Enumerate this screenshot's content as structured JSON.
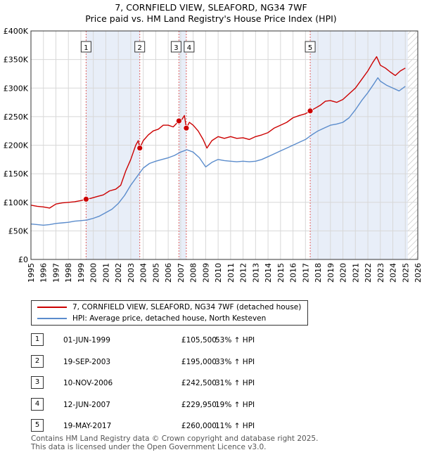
{
  "title_line1": "7, CORNFIELD VIEW, SLEAFORD, NG34 7WF",
  "title_line2": "Price paid vs. HM Land Registry's House Price Index (HPI)",
  "colors": {
    "property": "#cc0000",
    "hpi": "#5b8ccc",
    "shade": "#e8eef8",
    "hatch": "#bbbbbb",
    "vline": "#e06060",
    "grid": "#d8d8d8"
  },
  "legend": {
    "property_label": "7, CORNFIELD VIEW, SLEAFORD, NG34 7WF (detached house)",
    "hpi_label": "HPI: Average price, detached house, North Kesteven"
  },
  "transactions": [
    {
      "num": "1",
      "date": "01-JUN-1999",
      "price": "£105,500",
      "hpi": "53% ↑ HPI",
      "year": 1999.42,
      "value": 105500
    },
    {
      "num": "2",
      "date": "19-SEP-2003",
      "price": "£195,000",
      "hpi": "33% ↑ HPI",
      "year": 2003.72,
      "value": 195000
    },
    {
      "num": "3",
      "date": "10-NOV-2006",
      "price": "£242,500",
      "hpi": "31% ↑ HPI",
      "year": 2006.86,
      "value": 242500
    },
    {
      "num": "4",
      "date": "12-JUN-2007",
      "price": "£229,950",
      "hpi": "19% ↑ HPI",
      "year": 2007.45,
      "value": 229950
    },
    {
      "num": "5",
      "date": "19-MAY-2017",
      "price": "£260,000",
      "hpi": "11% ↑ HPI",
      "year": 2017.38,
      "value": 260000
    }
  ],
  "footer": {
    "line1": "Contains HM Land Registry data © Crown copyright and database right 2025.",
    "line2": "This data is licensed under the Open Government Licence v3.0."
  },
  "chart_data": {
    "type": "line",
    "title": "7, CORNFIELD VIEW, SLEAFORD, NG34 7WF — Price paid vs. HM Land Registry's House Price Index (HPI)",
    "xlabel": "",
    "ylabel": "",
    "xlim": [
      1995,
      2026
    ],
    "ylim": [
      0,
      400000
    ],
    "x_ticks": [
      1995,
      1996,
      1997,
      1998,
      1999,
      2000,
      2001,
      2002,
      2003,
      2004,
      2005,
      2006,
      2007,
      2008,
      2009,
      2010,
      2011,
      2012,
      2013,
      2014,
      2015,
      2016,
      2017,
      2018,
      2019,
      2020,
      2021,
      2022,
      2023,
      2024,
      2025,
      2026
    ],
    "y_ticks": [
      0,
      50000,
      100000,
      150000,
      200000,
      250000,
      300000,
      350000,
      400000
    ],
    "y_tick_labels": [
      "£0",
      "£50K",
      "£100K",
      "£150K",
      "£200K",
      "£250K",
      "£300K",
      "£350K",
      "£400K"
    ],
    "grid": true,
    "shaded_ranges": [
      [
        1999.42,
        2003.72
      ],
      [
        2006.86,
        2007.45
      ],
      [
        2017.38,
        2025.2
      ]
    ],
    "hatched_range": [
      2025.2,
      2026
    ],
    "series": [
      {
        "name": "7, CORNFIELD VIEW, SLEAFORD, NG34 7WF (detached house)",
        "points": [
          [
            1995.0,
            95000
          ],
          [
            1995.5,
            93000
          ],
          [
            1996.0,
            92000
          ],
          [
            1996.5,
            90000
          ],
          [
            1997.0,
            97000
          ],
          [
            1997.5,
            99000
          ],
          [
            1998.0,
            100000
          ],
          [
            1998.5,
            101000
          ],
          [
            1999.0,
            103000
          ],
          [
            1999.42,
            105500
          ],
          [
            1999.8,
            107000
          ],
          [
            2000.3,
            110000
          ],
          [
            2000.8,
            113000
          ],
          [
            2001.3,
            120000
          ],
          [
            2001.8,
            123000
          ],
          [
            2002.2,
            130000
          ],
          [
            2002.6,
            155000
          ],
          [
            2003.0,
            175000
          ],
          [
            2003.4,
            200000
          ],
          [
            2003.6,
            208000
          ],
          [
            2003.72,
            195000
          ],
          [
            2004.0,
            208000
          ],
          [
            2004.4,
            218000
          ],
          [
            2004.8,
            225000
          ],
          [
            2005.2,
            228000
          ],
          [
            2005.6,
            235000
          ],
          [
            2006.0,
            235000
          ],
          [
            2006.4,
            232000
          ],
          [
            2006.86,
            242500
          ],
          [
            2007.1,
            245000
          ],
          [
            2007.3,
            252000
          ],
          [
            2007.45,
            229950
          ],
          [
            2007.7,
            240000
          ],
          [
            2008.0,
            235000
          ],
          [
            2008.4,
            225000
          ],
          [
            2008.8,
            210000
          ],
          [
            2009.1,
            195000
          ],
          [
            2009.5,
            208000
          ],
          [
            2010.0,
            215000
          ],
          [
            2010.5,
            212000
          ],
          [
            2011.0,
            215000
          ],
          [
            2011.5,
            212000
          ],
          [
            2012.0,
            213000
          ],
          [
            2012.5,
            210000
          ],
          [
            2013.0,
            215000
          ],
          [
            2013.5,
            218000
          ],
          [
            2014.0,
            222000
          ],
          [
            2014.5,
            230000
          ],
          [
            2015.0,
            235000
          ],
          [
            2015.5,
            240000
          ],
          [
            2016.0,
            248000
          ],
          [
            2016.5,
            252000
          ],
          [
            2017.0,
            255000
          ],
          [
            2017.38,
            260000
          ],
          [
            2017.8,
            265000
          ],
          [
            2018.2,
            270000
          ],
          [
            2018.6,
            277000
          ],
          [
            2019.0,
            278000
          ],
          [
            2019.5,
            275000
          ],
          [
            2020.0,
            280000
          ],
          [
            2020.5,
            290000
          ],
          [
            2021.0,
            300000
          ],
          [
            2021.5,
            315000
          ],
          [
            2022.0,
            330000
          ],
          [
            2022.4,
            345000
          ],
          [
            2022.7,
            355000
          ],
          [
            2023.0,
            340000
          ],
          [
            2023.4,
            335000
          ],
          [
            2023.8,
            328000
          ],
          [
            2024.2,
            322000
          ],
          [
            2024.6,
            330000
          ],
          [
            2025.0,
            335000
          ]
        ]
      },
      {
        "name": "HPI: Average price, detached house, North Kesteven",
        "points": [
          [
            1995.0,
            62000
          ],
          [
            1995.5,
            61000
          ],
          [
            1996.0,
            60000
          ],
          [
            1996.5,
            61000
          ],
          [
            1997.0,
            63000
          ],
          [
            1997.5,
            64000
          ],
          [
            1998.0,
            65000
          ],
          [
            1998.5,
            67000
          ],
          [
            1999.0,
            68000
          ],
          [
            1999.5,
            69000
          ],
          [
            2000.0,
            72000
          ],
          [
            2000.5,
            76000
          ],
          [
            2001.0,
            82000
          ],
          [
            2001.5,
            88000
          ],
          [
            2002.0,
            98000
          ],
          [
            2002.5,
            112000
          ],
          [
            2003.0,
            130000
          ],
          [
            2003.5,
            145000
          ],
          [
            2004.0,
            160000
          ],
          [
            2004.5,
            168000
          ],
          [
            2005.0,
            172000
          ],
          [
            2005.5,
            175000
          ],
          [
            2006.0,
            178000
          ],
          [
            2006.5,
            182000
          ],
          [
            2007.0,
            188000
          ],
          [
            2007.5,
            192000
          ],
          [
            2008.0,
            188000
          ],
          [
            2008.5,
            178000
          ],
          [
            2009.0,
            162000
          ],
          [
            2009.5,
            170000
          ],
          [
            2010.0,
            175000
          ],
          [
            2010.5,
            173000
          ],
          [
            2011.0,
            172000
          ],
          [
            2011.5,
            171000
          ],
          [
            2012.0,
            172000
          ],
          [
            2012.5,
            171000
          ],
          [
            2013.0,
            172000
          ],
          [
            2013.5,
            175000
          ],
          [
            2014.0,
            180000
          ],
          [
            2014.5,
            185000
          ],
          [
            2015.0,
            190000
          ],
          [
            2015.5,
            195000
          ],
          [
            2016.0,
            200000
          ],
          [
            2016.5,
            205000
          ],
          [
            2017.0,
            210000
          ],
          [
            2017.5,
            218000
          ],
          [
            2018.0,
            225000
          ],
          [
            2018.5,
            230000
          ],
          [
            2019.0,
            235000
          ],
          [
            2019.5,
            237000
          ],
          [
            2020.0,
            240000
          ],
          [
            2020.5,
            248000
          ],
          [
            2021.0,
            262000
          ],
          [
            2021.5,
            278000
          ],
          [
            2022.0,
            292000
          ],
          [
            2022.5,
            308000
          ],
          [
            2022.8,
            318000
          ],
          [
            2023.0,
            312000
          ],
          [
            2023.5,
            305000
          ],
          [
            2024.0,
            300000
          ],
          [
            2024.5,
            295000
          ],
          [
            2025.0,
            303000
          ]
        ]
      }
    ]
  }
}
